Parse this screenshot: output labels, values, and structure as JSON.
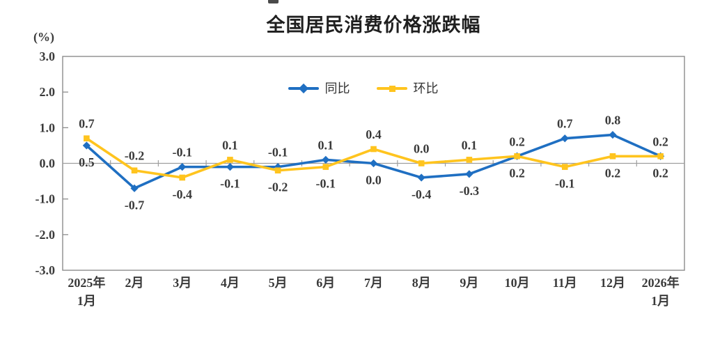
{
  "title": "全国居民消费价格涨跌幅",
  "unit_label": "(%)",
  "legend": {
    "items": [
      {
        "label": "同比",
        "marker": "diamond"
      },
      {
        "label": "环比",
        "marker": "square"
      }
    ]
  },
  "colors": {
    "yoy_blue": "#1F6FC2",
    "mom_yellow": "#FFC41E",
    "axis_gray": "#8C8C8C",
    "zero_line_gray": "#9E9E9E",
    "label_text": "#3A3A3A",
    "title_text": "#1F1F1F"
  },
  "chart_data": {
    "type": "line",
    "title": "全国居民消费价格涨跌幅",
    "xlabel": "",
    "ylabel": "(%)",
    "ylim": [
      -3.0,
      3.0
    ],
    "ytick_step": 1.0,
    "yticks": [
      "3.0",
      "2.0",
      "1.0",
      "0.0",
      "-1.0",
      "-2.0",
      "-3.0"
    ],
    "grid": false,
    "legend_position": "top-center-inside",
    "data_labels": true,
    "categories": [
      "2025年\n1月",
      "2月",
      "3月",
      "4月",
      "5月",
      "6月",
      "7月",
      "8月",
      "9月",
      "10月",
      "11月",
      "12月",
      "2026年\n1月"
    ],
    "series": [
      {
        "name": "同比",
        "color": "#1F6FC2",
        "marker": "diamond",
        "values": [
          0.5,
          -0.7,
          -0.1,
          -0.1,
          -0.1,
          0.1,
          0.0,
          -0.4,
          -0.3,
          0.2,
          0.7,
          0.8,
          0.2
        ],
        "labels": [
          "0.5",
          "-0.7",
          "-0.1",
          "-0.1",
          "-0.1",
          "0.1",
          "0.0",
          "-0.4",
          "-0.3",
          "0.2",
          "0.7",
          "0.8",
          "0.2"
        ]
      },
      {
        "name": "环比",
        "color": "#FFC41E",
        "marker": "square",
        "values": [
          0.7,
          -0.2,
          -0.4,
          0.1,
          -0.2,
          -0.1,
          0.4,
          0.0,
          0.1,
          0.2,
          -0.1,
          0.2,
          0.2
        ],
        "labels": [
          "0.7",
          "-0.2",
          "-0.4",
          "0.1",
          "-0.2",
          "-0.1",
          "0.4",
          "0.0",
          "0.1",
          "0.2",
          "-0.1",
          "0.2",
          "0.2"
        ]
      }
    ]
  }
}
